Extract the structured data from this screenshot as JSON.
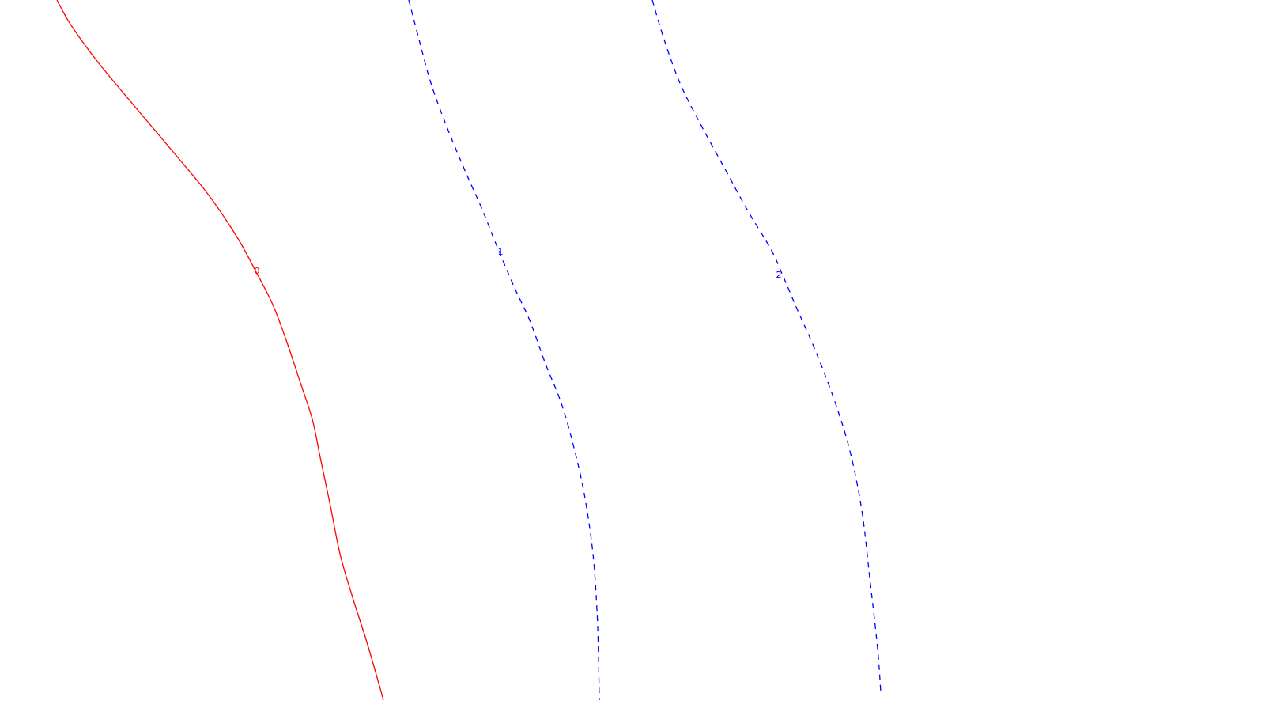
{
  "chart_data": {
    "type": "line",
    "title": "",
    "xlabel": "",
    "ylabel": "",
    "grid": false,
    "legend": "none",
    "series": [
      {
        "label": "0",
        "color": "#ff0000",
        "style": "solid",
        "points": [
          [
            72,
            0
          ],
          [
            90,
            32
          ],
          [
            125,
            80
          ],
          [
            175,
            140
          ],
          [
            230,
            205
          ],
          [
            265,
            248
          ],
          [
            300,
            300
          ],
          [
            323,
            342
          ],
          [
            345,
            385
          ],
          [
            362,
            430
          ],
          [
            380,
            484
          ],
          [
            395,
            530
          ],
          [
            405,
            578
          ],
          [
            418,
            640
          ],
          [
            430,
            700
          ],
          [
            445,
            752
          ],
          [
            465,
            815
          ],
          [
            485,
            885
          ]
        ]
      },
      {
        "label": "1",
        "color": "#0000ff",
        "style": "dashed",
        "points": [
          [
            517,
            0
          ],
          [
            530,
            50
          ],
          [
            545,
            105
          ],
          [
            565,
            160
          ],
          [
            590,
            220
          ],
          [
            610,
            265
          ],
          [
            628,
            310
          ],
          [
            650,
            362
          ],
          [
            670,
            405
          ],
          [
            690,
            460
          ],
          [
            710,
            510
          ],
          [
            727,
            570
          ],
          [
            740,
            630
          ],
          [
            750,
            700
          ],
          [
            755,
            770
          ],
          [
            757,
            830
          ],
          [
            758,
            885
          ]
        ]
      },
      {
        "label": "2",
        "color": "#0000ff",
        "style": "dashed",
        "points": [
          [
            825,
            0
          ],
          [
            840,
            50
          ],
          [
            860,
            105
          ],
          [
            885,
            155
          ],
          [
            915,
            210
          ],
          [
            945,
            265
          ],
          [
            975,
            315
          ],
          [
            990,
            348
          ],
          [
            1010,
            395
          ],
          [
            1030,
            440
          ],
          [
            1055,
            505
          ],
          [
            1075,
            570
          ],
          [
            1090,
            645
          ],
          [
            1100,
            730
          ],
          [
            1110,
            820
          ],
          [
            1114,
            875
          ]
        ]
      }
    ],
    "labels": [
      {
        "text": "0",
        "color": "#ff0000",
        "x": 325,
        "y": 343
      },
      {
        "text": "1",
        "color": "#0000ff",
        "x": 633,
        "y": 319
      },
      {
        "text": "2",
        "color": "#0000ff",
        "x": 985,
        "y": 348
      }
    ]
  }
}
